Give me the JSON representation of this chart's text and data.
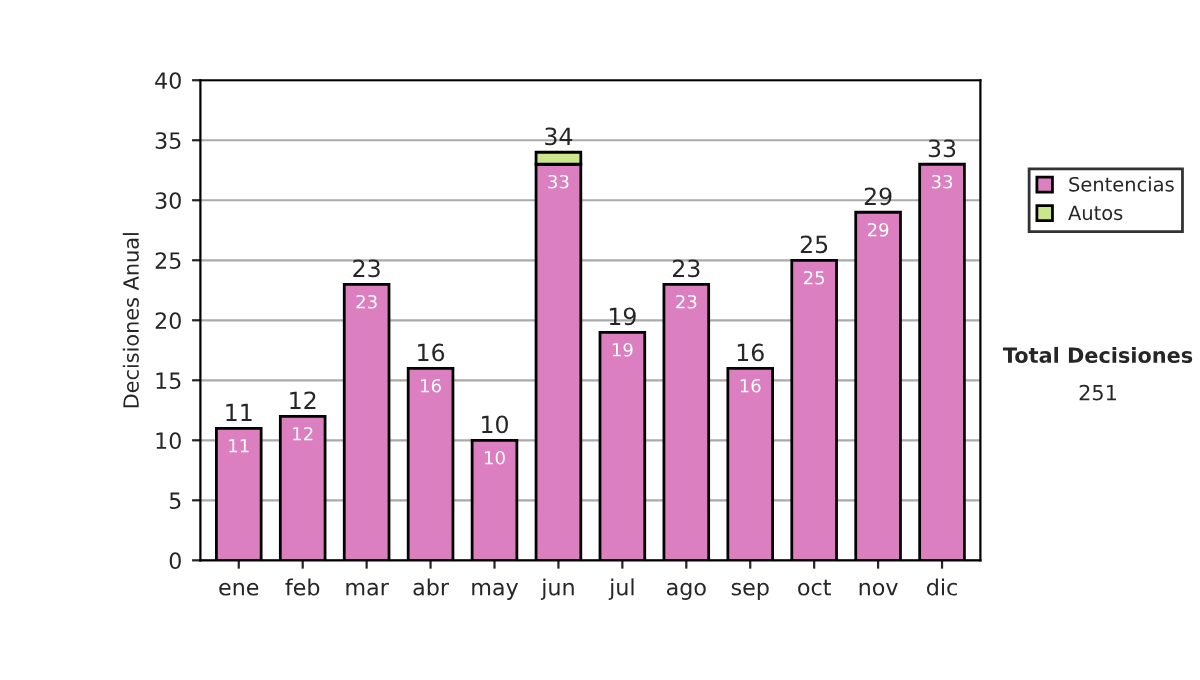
{
  "chart_data": {
    "type": "bar",
    "ylabel": "Decisiones Anual",
    "stacked": true,
    "categories": [
      "ene",
      "feb",
      "mar",
      "abr",
      "may",
      "jun",
      "jul",
      "ago",
      "sep",
      "oct",
      "nov",
      "dic"
    ],
    "series": [
      {
        "name": "Sentencias",
        "color": "#dc7fc0",
        "values": [
          11,
          12,
          23,
          16,
          10,
          33,
          19,
          23,
          16,
          25,
          29,
          33
        ],
        "value_labels": [
          "11",
          "12",
          "23",
          "16",
          "10",
          "33",
          "19",
          "23",
          "16",
          "25",
          "29",
          "33"
        ]
      },
      {
        "name": "Autos",
        "color": "#cce68c",
        "values": [
          null,
          null,
          null,
          null,
          null,
          1,
          null,
          null,
          null,
          null,
          null,
          null
        ]
      }
    ],
    "totals": [
      "11",
      "12",
      "23",
      "16",
      "10",
      "34",
      "19",
      "23",
      "16",
      "25",
      "29",
      "33"
    ],
    "ylim": [
      0,
      40
    ],
    "yticks": [
      0,
      5,
      10,
      15,
      20,
      25,
      30,
      35,
      40
    ],
    "grid": "y",
    "legend": "right",
    "annotations": [
      "Total Decisiones",
      "251"
    ]
  }
}
